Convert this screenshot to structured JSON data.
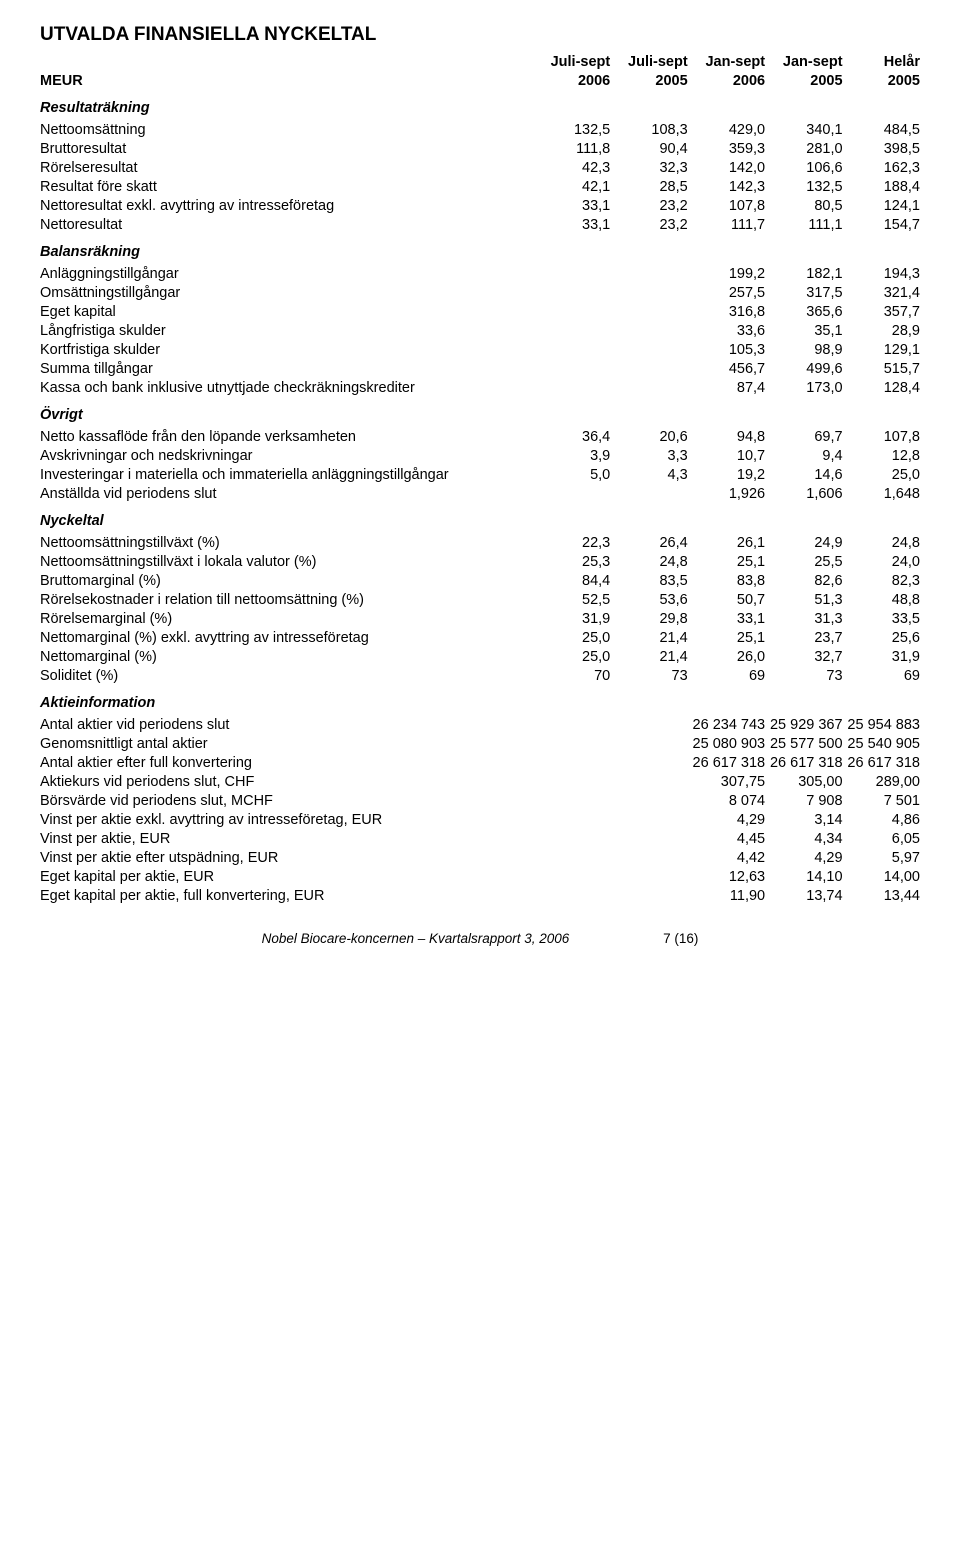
{
  "title": "UTVALDA FINANSIELLA NYCKELTAL",
  "header": {
    "r0": [
      "",
      "Juli-sept",
      "Juli-sept",
      "Jan-sept",
      "Jan-sept",
      "Helår"
    ],
    "r1": [
      "MEUR",
      "2006",
      "2005",
      "2006",
      "2005",
      "2005"
    ]
  },
  "sections": {
    "resultat": {
      "label": "Resultaträkning",
      "rows": [
        [
          "Nettoomsättning",
          "132,5",
          "108,3",
          "429,0",
          "340,1",
          "484,5"
        ],
        [
          "Bruttoresultat",
          "111,8",
          "90,4",
          "359,3",
          "281,0",
          "398,5"
        ],
        [
          "Rörelseresultat",
          "42,3",
          "32,3",
          "142,0",
          "106,6",
          "162,3"
        ],
        [
          "Resultat före skatt",
          "42,1",
          "28,5",
          "142,3",
          "132,5",
          "188,4"
        ],
        [
          "Nettoresultat exkl. avyttring av intresseföretag",
          "33,1",
          "23,2",
          "107,8",
          "80,5",
          "124,1"
        ],
        [
          "Nettoresultat",
          "33,1",
          "23,2",
          "111,7",
          "111,1",
          "154,7"
        ]
      ]
    },
    "balans": {
      "label": "Balansräkning",
      "rows": [
        [
          "Anläggningstillgångar",
          "",
          "",
          "199,2",
          "182,1",
          "194,3"
        ],
        [
          "Omsättningstillgångar",
          "",
          "",
          "257,5",
          "317,5",
          "321,4"
        ],
        [
          "Eget kapital",
          "",
          "",
          "316,8",
          "365,6",
          "357,7"
        ],
        [
          "Långfristiga skulder",
          "",
          "",
          "33,6",
          "35,1",
          "28,9"
        ],
        [
          "Kortfristiga skulder",
          "",
          "",
          "105,3",
          "98,9",
          "129,1"
        ],
        [
          "Summa tillgångar",
          "",
          "",
          "456,7",
          "499,6",
          "515,7"
        ],
        [
          "Kassa och bank inklusive utnyttjade checkräkningskrediter",
          "",
          "",
          "87,4",
          "173,0",
          "128,4"
        ]
      ]
    },
    "ovrigt": {
      "label": "Övrigt",
      "rows": [
        [
          "Netto kassaflöde från den löpande verksamheten",
          "36,4",
          "20,6",
          "94,8",
          "69,7",
          "107,8"
        ],
        [
          "Avskrivningar och nedskrivningar",
          "3,9",
          "3,3",
          "10,7",
          "9,4",
          "12,8"
        ],
        [
          "Investeringar i materiella och immateriella anläggningstillgångar",
          "5,0",
          "4,3",
          "19,2",
          "14,6",
          "25,0"
        ],
        [
          "Anställda vid periodens slut",
          "",
          "",
          "1,926",
          "1,606",
          "1,648"
        ]
      ]
    },
    "nyckeltal": {
      "label": "Nyckeltal",
      "rows": [
        [
          "Nettoomsättningstillväxt (%)",
          "22,3",
          "26,4",
          "26,1",
          "24,9",
          "24,8"
        ],
        [
          "Nettoomsättningstillväxt i lokala valutor (%)",
          "25,3",
          "24,8",
          "25,1",
          "25,5",
          "24,0"
        ],
        [
          "Bruttomarginal (%)",
          "84,4",
          "83,5",
          "83,8",
          "82,6",
          "82,3"
        ],
        [
          "Rörelsekostnader i relation till nettoomsättning (%)",
          "52,5",
          "53,6",
          "50,7",
          "51,3",
          "48,8"
        ],
        [
          "Rörelsemarginal (%)",
          "31,9",
          "29,8",
          "33,1",
          "31,3",
          "33,5"
        ],
        [
          "Nettomarginal (%) exkl. avyttring av intresseföretag",
          "25,0",
          "21,4",
          "25,1",
          "23,7",
          "25,6"
        ],
        [
          "Nettomarginal (%)",
          "25,0",
          "21,4",
          "26,0",
          "32,7",
          "31,9"
        ],
        [
          "Soliditet (%)",
          "70",
          "73",
          "69",
          "73",
          "69"
        ]
      ]
    },
    "aktie": {
      "label": "Aktieinformation",
      "rows": [
        [
          "Antal aktier vid periodens slut",
          "",
          "",
          "26 234 743",
          "25 929 367",
          "25 954 883"
        ],
        [
          "Genomsnittligt antal aktier",
          "",
          "",
          "25 080 903",
          "25 577 500",
          "25 540 905"
        ],
        [
          "Antal aktier efter full konvertering",
          "",
          "",
          "26 617 318",
          "26 617 318",
          "26 617 318"
        ],
        [
          "Aktiekurs vid periodens slut, CHF",
          "",
          "",
          "307,75",
          "305,00",
          "289,00"
        ],
        [
          "Börsvärde vid periodens slut, MCHF",
          "",
          "",
          "8 074",
          "7 908",
          "7 501"
        ],
        [
          "Vinst per aktie exkl. avyttring av intresseföretag, EUR",
          "",
          "",
          "4,29",
          "3,14",
          "4,86"
        ],
        [
          "Vinst per aktie, EUR",
          "",
          "",
          "4,45",
          "4,34",
          "6,05"
        ],
        [
          "Vinst per aktie efter utspädning, EUR",
          "",
          "",
          "4,42",
          "4,29",
          "5,97"
        ],
        [
          "Eget kapital per aktie, EUR",
          "",
          "",
          "12,63",
          "14,10",
          "14,00"
        ],
        [
          "Eget kapital per aktie, full konvertering, EUR",
          "",
          "",
          "11,90",
          "13,74",
          "13,44"
        ]
      ]
    }
  },
  "footer": {
    "text": "Nobel Biocare-koncernen – Kvartalsrapport 3, 2006",
    "page": "7 (16)"
  }
}
